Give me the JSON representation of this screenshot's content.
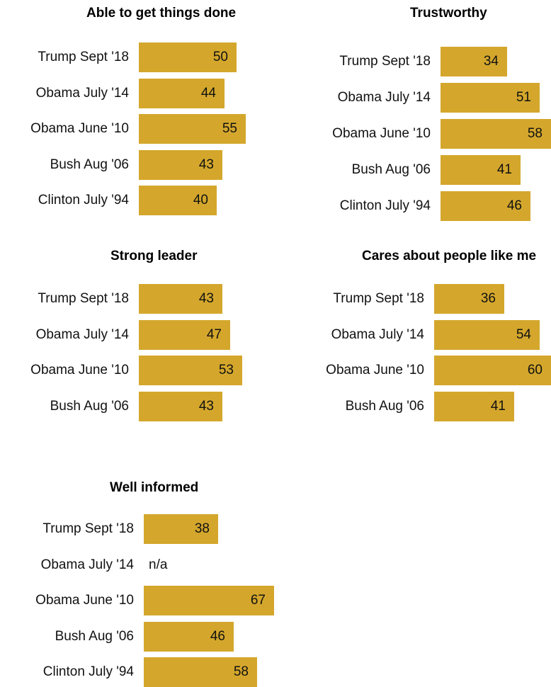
{
  "bar_color": "#d4a72c",
  "chart_data": [
    {
      "type": "bar",
      "orientation": "horizontal",
      "title": "Able to get things done",
      "categories": [
        "Trump Sept '18",
        "Obama July '14",
        "Obama June '10",
        "Bush Aug '06",
        "Clinton July '94"
      ],
      "values": [
        50,
        44,
        55,
        43,
        40
      ],
      "value_labels": [
        "50",
        "44",
        "55",
        "43",
        "40"
      ]
    },
    {
      "type": "bar",
      "orientation": "horizontal",
      "title": "Trustworthy",
      "categories": [
        "Trump Sept '18",
        "Obama July '14",
        "Obama June '10",
        "Bush Aug '06",
        "Clinton July '94"
      ],
      "values": [
        34,
        51,
        58,
        41,
        46
      ],
      "value_labels": [
        "34",
        "51",
        "58",
        "41",
        "46"
      ]
    },
    {
      "type": "bar",
      "orientation": "horizontal",
      "title": "Strong leader",
      "categories": [
        "Trump Sept '18",
        "Obama July '14",
        "Obama June '10",
        "Bush Aug '06"
      ],
      "values": [
        43,
        47,
        53,
        43
      ],
      "value_labels": [
        "43",
        "47",
        "53",
        "43"
      ]
    },
    {
      "type": "bar",
      "orientation": "horizontal",
      "title": "Cares about people like me",
      "categories": [
        "Trump Sept '18",
        "Obama July '14",
        "Obama June '10",
        "Bush Aug '06"
      ],
      "values": [
        36,
        54,
        60,
        41
      ],
      "value_labels": [
        "36",
        "54",
        "60",
        "41"
      ]
    },
    {
      "type": "bar",
      "orientation": "horizontal",
      "title": "Well informed",
      "categories": [
        "Trump Sept '18",
        "Obama July '14",
        "Obama June '10",
        "Bush Aug '06",
        "Clinton July '94"
      ],
      "values": [
        38,
        null,
        67,
        46,
        58
      ],
      "value_labels": [
        "38",
        "n/a",
        "67",
        "46",
        "58"
      ]
    }
  ]
}
